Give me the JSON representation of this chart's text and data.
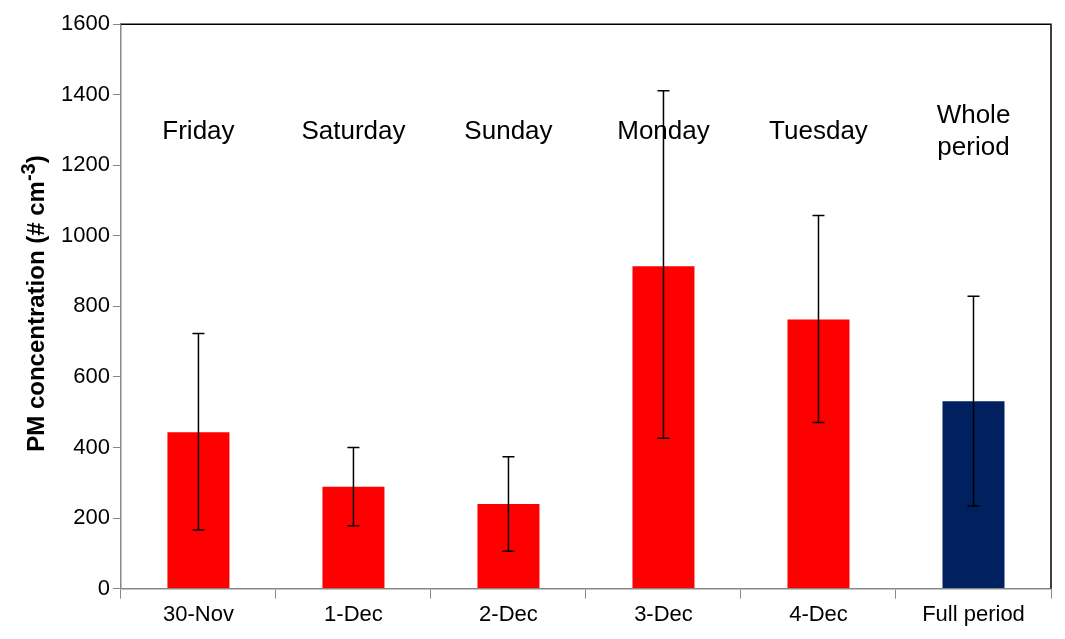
{
  "chart_data": {
    "type": "bar",
    "ylabel": "PM concentration (# cm$^{-3}$)",
    "categories": [
      "30-Nov",
      "1-Dec",
      "2-Dec",
      "3-Dec",
      "4-Dec",
      "Full period"
    ],
    "values": [
      443,
      289,
      240,
      914,
      763,
      531
    ],
    "colors": [
      "#ff0000",
      "#ff0000",
      "#ff0000",
      "#ff0000",
      "#ff0000",
      "#002060"
    ],
    "errors": [
      [
        166,
        723
      ],
      [
        178,
        400
      ],
      [
        106,
        374
      ],
      [
        426,
        1411
      ],
      [
        471,
        1058
      ],
      [
        234,
        829
      ]
    ],
    "ylim": [
      0,
      1600
    ],
    "yticks": [
      0,
      200,
      400,
      600,
      800,
      1000,
      1200,
      1400,
      1600
    ],
    "grid": false,
    "legend": false,
    "annotations": [
      "Friday",
      "Saturday",
      "Sunday",
      "Monday",
      "Tuesday",
      "Whole period"
    ]
  }
}
